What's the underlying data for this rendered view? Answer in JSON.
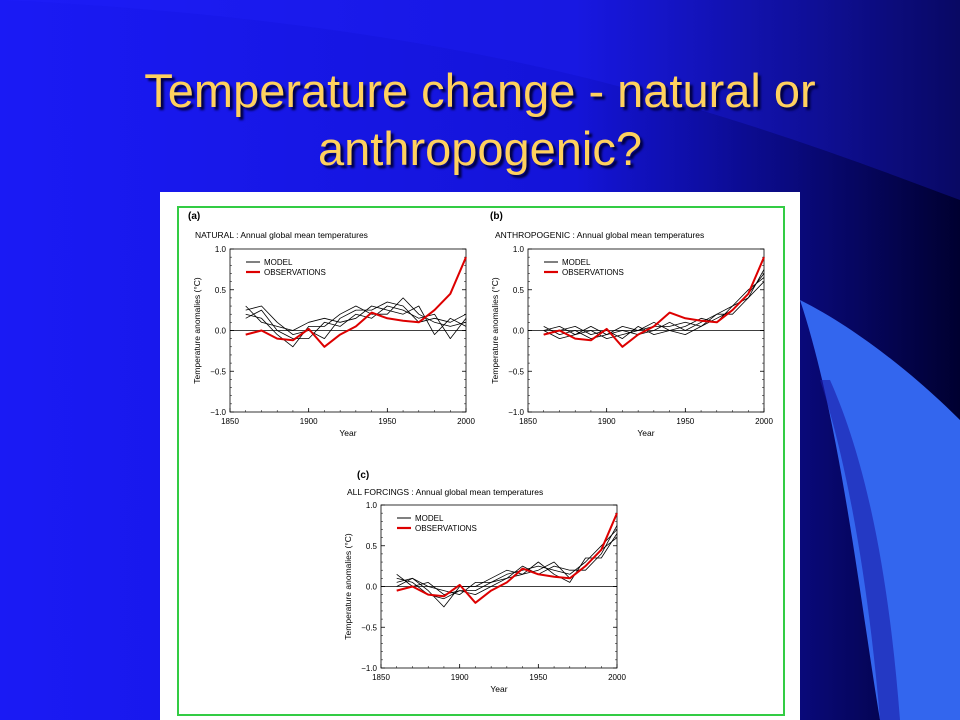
{
  "slide": {
    "title_line1": "Temperature change - natural or",
    "title_line2": "anthropogenic?"
  },
  "colors": {
    "background": "#1a1af0",
    "title": "#ffd15e",
    "frame": "#33cc44",
    "model": "#000000",
    "observations": "#dd0000"
  },
  "chart_data": [
    {
      "type": "line",
      "panel_label": "(a)",
      "title": "NATURAL : Annual global mean temperatures",
      "xlabel": "Year",
      "ylabel": "Temperature anomalies (°C)",
      "xlim": [
        1850,
        2000
      ],
      "ylim": [
        -1.0,
        1.0
      ],
      "x_ticks": [
        "1850",
        "1900",
        "1950",
        "2000"
      ],
      "y_ticks": [
        "−1.0",
        "−0.5",
        "0.0",
        "0.5",
        "1.0"
      ],
      "legend": [
        "MODEL",
        "OBSERVATIONS"
      ],
      "legend_position": "top-left",
      "x": [
        1860,
        1870,
        1880,
        1890,
        1900,
        1910,
        1920,
        1930,
        1940,
        1950,
        1960,
        1970,
        1980,
        1990,
        2000
      ],
      "series": [
        {
          "name": "OBSERVATIONS",
          "values": [
            -0.05,
            0.0,
            -0.1,
            -0.12,
            0.02,
            -0.2,
            -0.05,
            0.05,
            0.22,
            0.15,
            0.12,
            0.1,
            0.25,
            0.45,
            0.9
          ]
        },
        {
          "name": "MODEL",
          "values": [
            0.25,
            0.3,
            0.1,
            -0.05,
            0.0,
            -0.1,
            0.15,
            0.25,
            0.25,
            0.35,
            0.3,
            0.1,
            0.15,
            0.1,
            0.2
          ]
        },
        {
          "name": "MODEL",
          "values": [
            0.2,
            0.15,
            -0.05,
            -0.2,
            0.05,
            0.05,
            0.2,
            0.3,
            0.2,
            0.2,
            0.4,
            0.2,
            0.1,
            0.05,
            0.1
          ]
        },
        {
          "name": "MODEL",
          "values": [
            0.3,
            0.1,
            0.05,
            0.0,
            0.1,
            0.15,
            0.1,
            0.15,
            0.3,
            0.25,
            0.2,
            0.3,
            -0.05,
            0.15,
            0.05
          ]
        },
        {
          "name": "MODEL",
          "values": [
            0.15,
            0.25,
            0.0,
            -0.1,
            -0.1,
            0.1,
            0.05,
            0.2,
            0.15,
            0.3,
            0.25,
            0.15,
            0.2,
            -0.1,
            0.15
          ]
        }
      ]
    },
    {
      "type": "line",
      "panel_label": "(b)",
      "title": "ANTHROPOGENIC : Annual global mean temperatures",
      "xlabel": "Year",
      "ylabel": "Temperature anomalies (°C)",
      "xlim": [
        1850,
        2000
      ],
      "ylim": [
        -1.0,
        1.0
      ],
      "x_ticks": [
        "1850",
        "1900",
        "1950",
        "2000"
      ],
      "y_ticks": [
        "−1.0",
        "−0.5",
        "0.0",
        "0.5",
        "1.0"
      ],
      "legend": [
        "MODEL",
        "OBSERVATIONS"
      ],
      "legend_position": "top-left",
      "x": [
        1860,
        1870,
        1880,
        1890,
        1900,
        1910,
        1920,
        1930,
        1940,
        1950,
        1960,
        1970,
        1980,
        1990,
        2000
      ],
      "series": [
        {
          "name": "OBSERVATIONS",
          "values": [
            -0.05,
            0.0,
            -0.1,
            -0.12,
            0.02,
            -0.2,
            -0.05,
            0.05,
            0.22,
            0.15,
            0.12,
            0.1,
            0.25,
            0.45,
            0.9
          ]
        },
        {
          "name": "MODEL",
          "values": [
            0.0,
            0.05,
            -0.05,
            0.0,
            -0.1,
            -0.05,
            0.0,
            0.05,
            0.05,
            0.1,
            0.05,
            0.15,
            0.25,
            0.45,
            0.7
          ]
        },
        {
          "name": "MODEL",
          "values": [
            0.05,
            -0.05,
            0.0,
            -0.1,
            -0.05,
            0.0,
            -0.05,
            0.0,
            0.1,
            0.0,
            0.1,
            0.2,
            0.3,
            0.4,
            0.6
          ]
        },
        {
          "name": "MODEL",
          "values": [
            -0.05,
            0.0,
            0.05,
            -0.05,
            0.0,
            -0.1,
            0.05,
            -0.05,
            0.0,
            0.05,
            0.15,
            0.1,
            0.3,
            0.5,
            0.65
          ]
        },
        {
          "name": "MODEL",
          "values": [
            0.0,
            -0.1,
            -0.05,
            0.05,
            -0.05,
            0.05,
            0.0,
            0.1,
            0.0,
            -0.05,
            0.05,
            0.2,
            0.2,
            0.4,
            0.75
          ]
        }
      ]
    },
    {
      "type": "line",
      "panel_label": "(c)",
      "title": "ALL FORCINGS : Annual global mean temperatures",
      "xlabel": "Year",
      "ylabel": "Temperature anomalies (°C)",
      "xlim": [
        1850,
        2000
      ],
      "ylim": [
        -1.0,
        1.0
      ],
      "x_ticks": [
        "1850",
        "1900",
        "1950",
        "2000"
      ],
      "y_ticks": [
        "−1.0",
        "−0.5",
        "0.0",
        "0.5",
        "1.0"
      ],
      "legend": [
        "MODEL",
        "OBSERVATIONS"
      ],
      "legend_position": "top-left",
      "x": [
        1860,
        1870,
        1880,
        1890,
        1900,
        1910,
        1920,
        1930,
        1940,
        1950,
        1960,
        1970,
        1980,
        1990,
        2000
      ],
      "series": [
        {
          "name": "OBSERVATIONS",
          "values": [
            -0.05,
            0.0,
            -0.1,
            -0.12,
            0.02,
            -0.2,
            -0.05,
            0.05,
            0.22,
            0.15,
            0.12,
            0.1,
            0.25,
            0.45,
            0.9
          ]
        },
        {
          "name": "MODEL",
          "values": [
            0.1,
            0.05,
            -0.1,
            -0.15,
            -0.05,
            -0.05,
            0.05,
            0.15,
            0.2,
            0.25,
            0.2,
            0.15,
            0.3,
            0.5,
            0.7
          ]
        },
        {
          "name": "MODEL",
          "values": [
            0.05,
            0.1,
            -0.05,
            -0.25,
            0.0,
            0.0,
            0.1,
            0.2,
            0.15,
            0.2,
            0.3,
            0.1,
            0.25,
            0.45,
            0.6
          ]
        },
        {
          "name": "MODEL",
          "values": [
            0.15,
            0.0,
            0.05,
            -0.1,
            -0.05,
            -0.1,
            0.0,
            0.1,
            0.25,
            0.15,
            0.25,
            0.2,
            0.2,
            0.4,
            0.75
          ]
        },
        {
          "name": "MODEL",
          "values": [
            0.0,
            0.1,
            0.0,
            -0.05,
            -0.1,
            0.05,
            0.05,
            0.1,
            0.15,
            0.3,
            0.15,
            0.05,
            0.35,
            0.35,
            0.65
          ]
        }
      ]
    }
  ]
}
